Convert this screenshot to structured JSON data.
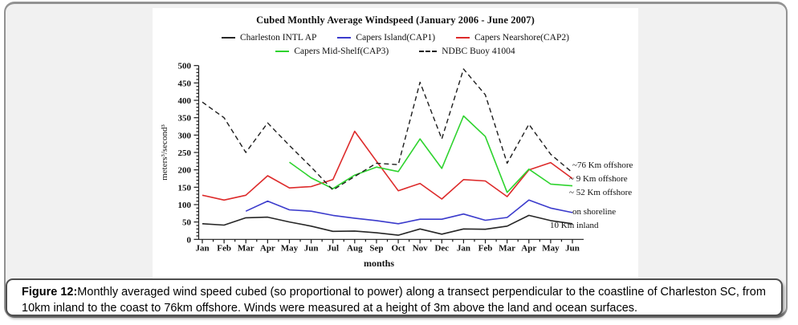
{
  "figure": {
    "caption_prefix": "Figure 12:",
    "caption_text": "Monthly averaged wind speed cubed (so proportional to power) along a transect perpendicular to the coastline of Charleston SC, from 10km inland to the coast to 76km offshore. Winds were measured at a height of 3m above the land and ocean surfaces."
  },
  "chart_data": {
    "type": "line",
    "title": "Cubed Monthly Average Windspeed (January 2006 - June 2007)",
    "xlabel": "months",
    "ylabel": "meters³/second³",
    "ylim": [
      0,
      500
    ],
    "ytick_step": 50,
    "yticks": [
      0,
      50,
      100,
      150,
      200,
      250,
      300,
      350,
      400,
      450,
      500
    ],
    "categories": [
      "Jan",
      "Feb",
      "Mar",
      "Apr",
      "May",
      "Jun",
      "Jul",
      "Aug",
      "Sep",
      "Oct",
      "Nov",
      "Dec",
      "Jan",
      "Feb",
      "Mar",
      "Apr",
      "May",
      "Jun"
    ],
    "grid": false,
    "legend_position": "top",
    "series": [
      {
        "name": "Charleston INTL AP",
        "color": "#262626",
        "style": "solid",
        "start_index": 0,
        "values": [
          45,
          41,
          62,
          64,
          50,
          38,
          23,
          24,
          19,
          12,
          30,
          15,
          30,
          29,
          38,
          69,
          54,
          45
        ]
      },
      {
        "name": "Capers Island(CAP1)",
        "color": "#3b3bcc",
        "style": "solid",
        "start_index": 2,
        "values": [
          81,
          110,
          85,
          81,
          69,
          61,
          54,
          45,
          58,
          58,
          73,
          55,
          63,
          113,
          90,
          77
        ]
      },
      {
        "name": "Capers Nearshore(CAP2)",
        "color": "#dd2a2a",
        "style": "solid",
        "start_index": 0,
        "values": [
          127,
          113,
          127,
          183,
          148,
          152,
          172,
          311,
          225,
          140,
          161,
          116,
          172,
          168,
          123,
          200,
          221,
          175
        ]
      },
      {
        "name": "Capers Mid-Shelf(CAP3)",
        "color": "#2ed32e",
        "style": "solid",
        "start_index": 4,
        "values": [
          222,
          177,
          146,
          185,
          208,
          195,
          289,
          204,
          355,
          296,
          135,
          202,
          159,
          154
        ]
      },
      {
        "name": "NDBC Buoy 41004",
        "color": "#1d1d1d",
        "style": "dashed",
        "start_index": 0,
        "values": [
          395,
          350,
          250,
          335,
          270,
          208,
          142,
          181,
          219,
          215,
          452,
          289,
          490,
          416,
          219,
          331,
          245,
          192
        ]
      }
    ],
    "annotations": [
      "~76 Km offshore",
      "~ 9 Km offshore",
      "~ 52 Km offshore",
      "on shoreline",
      "10 Km inland"
    ]
  }
}
